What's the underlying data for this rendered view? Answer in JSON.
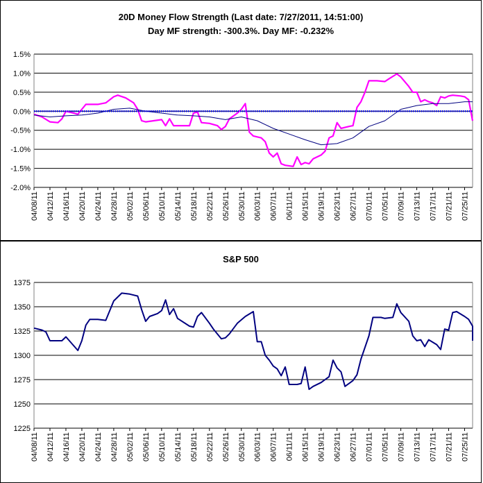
{
  "colors": {
    "mf_line": "#FF00FF",
    "avg_line": "#000080",
    "zero_line": "#0000FF",
    "sp_line": "#000080",
    "grid": "#000000",
    "background": "#FFFFFF"
  },
  "x_tick_labels": [
    "04/08/11",
    "04/12/11",
    "04/16/11",
    "04/20/11",
    "04/24/11",
    "04/28/11",
    "05/02/11",
    "05/06/11",
    "05/10/11",
    "05/14/11",
    "05/18/11",
    "05/22/11",
    "05/26/11",
    "05/30/11",
    "06/03/11",
    "06/07/11",
    "06/11/11",
    "06/15/11",
    "06/19/11",
    "06/23/11",
    "06/27/11",
    "07/01/11",
    "07/05/11",
    "07/09/11",
    "07/13/11",
    "07/17/11",
    "07/21/11",
    "07/25/11"
  ],
  "chart_data": [
    {
      "type": "line",
      "title": "20D Money Flow Strength (Last date: 7/27/2011, 14:51:00)",
      "subtitle": "Day MF strength: -300.3%. Day MF: -0.232%",
      "x_start": "04/08/11",
      "x_end": "07/27/11",
      "ylim": [
        -2.0,
        1.5
      ],
      "y_ticks": [
        "1.5%",
        "1.0%",
        "0.5%",
        "0.0%",
        "-0.5%",
        "-1.0%",
        "-1.5%",
        "-2.0%"
      ],
      "grid": true,
      "series": [
        {
          "style": "magenta",
          "points": [
            [
              "04/08/11",
              -0.08
            ],
            [
              "04/10/11",
              -0.15
            ],
            [
              "04/12/11",
              -0.28
            ],
            [
              "04/14/11",
              -0.3
            ],
            [
              "04/15/11",
              -0.2
            ],
            [
              "04/16/11",
              0.0
            ],
            [
              "04/18/11",
              -0.05
            ],
            [
              "04/19/11",
              -0.08
            ],
            [
              "04/20/11",
              0.05
            ],
            [
              "04/21/11",
              0.18
            ],
            [
              "04/24/11",
              0.18
            ],
            [
              "04/26/11",
              0.22
            ],
            [
              "04/28/11",
              0.38
            ],
            [
              "04/29/11",
              0.42
            ],
            [
              "05/01/11",
              0.35
            ],
            [
              "05/03/11",
              0.22
            ],
            [
              "05/04/11",
              0.05
            ],
            [
              "05/05/11",
              -0.25
            ],
            [
              "05/06/11",
              -0.28
            ],
            [
              "05/08/11",
              -0.25
            ],
            [
              "05/10/11",
              -0.22
            ],
            [
              "05/11/11",
              -0.38
            ],
            [
              "05/12/11",
              -0.2
            ],
            [
              "05/13/11",
              -0.38
            ],
            [
              "05/17/11",
              -0.38
            ],
            [
              "05/18/11",
              -0.05
            ],
            [
              "05/19/11",
              -0.02
            ],
            [
              "05/20/11",
              -0.3
            ],
            [
              "05/22/11",
              -0.32
            ],
            [
              "05/24/11",
              -0.38
            ],
            [
              "05/25/11",
              -0.48
            ],
            [
              "05/26/11",
              -0.4
            ],
            [
              "05/27/11",
              -0.2
            ],
            [
              "05/29/11",
              -0.05
            ],
            [
              "05/30/11",
              0.05
            ],
            [
              "05/31/11",
              0.2
            ],
            [
              "06/01/11",
              -0.55
            ],
            [
              "06/02/11",
              -0.65
            ],
            [
              "06/04/11",
              -0.7
            ],
            [
              "06/05/11",
              -0.8
            ],
            [
              "06/06/11",
              -1.1
            ],
            [
              "06/07/11",
              -1.2
            ],
            [
              "06/08/11",
              -1.1
            ],
            [
              "06/09/11",
              -1.38
            ],
            [
              "06/10/11",
              -1.42
            ],
            [
              "06/12/11",
              -1.45
            ],
            [
              "06/13/11",
              -1.2
            ],
            [
              "06/14/11",
              -1.4
            ],
            [
              "06/15/11",
              -1.35
            ],
            [
              "06/16/11",
              -1.38
            ],
            [
              "06/17/11",
              -1.25
            ],
            [
              "06/19/11",
              -1.15
            ],
            [
              "06/20/11",
              -1.05
            ],
            [
              "06/21/11",
              -0.7
            ],
            [
              "06/22/11",
              -0.65
            ],
            [
              "06/23/11",
              -0.3
            ],
            [
              "06/24/11",
              -0.45
            ],
            [
              "06/26/11",
              -0.4
            ],
            [
              "06/27/11",
              -0.38
            ],
            [
              "06/28/11",
              0.1
            ],
            [
              "06/29/11",
              0.25
            ],
            [
              "06/30/11",
              0.5
            ],
            [
              "07/01/11",
              0.8
            ],
            [
              "07/03/11",
              0.8
            ],
            [
              "07/05/11",
              0.78
            ],
            [
              "07/06/11",
              0.85
            ],
            [
              "07/08/11",
              0.98
            ],
            [
              "07/09/11",
              0.9
            ],
            [
              "07/11/11",
              0.65
            ],
            [
              "07/12/11",
              0.5
            ],
            [
              "07/13/11",
              0.5
            ],
            [
              "07/14/11",
              0.25
            ],
            [
              "07/15/11",
              0.3
            ],
            [
              "07/16/11",
              0.25
            ],
            [
              "07/17/11",
              0.22
            ],
            [
              "07/18/11",
              0.15
            ],
            [
              "07/19/11",
              0.38
            ],
            [
              "07/20/11",
              0.35
            ],
            [
              "07/21/11",
              0.4
            ],
            [
              "07/22/11",
              0.42
            ],
            [
              "07/24/11",
              0.4
            ],
            [
              "07/25/11",
              0.38
            ],
            [
              "07/26/11",
              0.3
            ],
            [
              "07/27/11",
              -0.25
            ]
          ]
        },
        {
          "style": "navy-thin",
          "points": [
            [
              "04/08/11",
              -0.1
            ],
            [
              "04/12/11",
              -0.15
            ],
            [
              "04/16/11",
              -0.12
            ],
            [
              "04/20/11",
              -0.1
            ],
            [
              "04/24/11",
              -0.05
            ],
            [
              "04/28/11",
              0.05
            ],
            [
              "05/02/11",
              0.08
            ],
            [
              "05/06/11",
              0.0
            ],
            [
              "05/10/11",
              -0.05
            ],
            [
              "05/14/11",
              -0.1
            ],
            [
              "05/18/11",
              -0.12
            ],
            [
              "05/22/11",
              -0.15
            ],
            [
              "05/26/11",
              -0.22
            ],
            [
              "05/30/11",
              -0.15
            ],
            [
              "06/03/11",
              -0.25
            ],
            [
              "06/07/11",
              -0.45
            ],
            [
              "06/11/11",
              -0.6
            ],
            [
              "06/15/11",
              -0.75
            ],
            [
              "06/19/11",
              -0.88
            ],
            [
              "06/23/11",
              -0.85
            ],
            [
              "06/27/11",
              -0.7
            ],
            [
              "07/01/11",
              -0.4
            ],
            [
              "07/05/11",
              -0.25
            ],
            [
              "07/09/11",
              0.05
            ],
            [
              "07/13/11",
              0.15
            ],
            [
              "07/17/11",
              0.2
            ],
            [
              "07/21/11",
              0.2
            ],
            [
              "07/25/11",
              0.25
            ],
            [
              "07/27/11",
              0.25
            ]
          ]
        },
        {
          "style": "zero-dotted",
          "points": [
            [
              "04/08/11",
              0.0
            ],
            [
              "07/27/11",
              0.0
            ]
          ]
        }
      ]
    },
    {
      "type": "line",
      "title": "S&P 500",
      "x_start": "04/08/11",
      "x_end": "07/27/11",
      "ylim": [
        1225,
        1375
      ],
      "y_ticks": [
        "1375",
        "1350",
        "1325",
        "1300",
        "1275",
        "1250",
        "1225"
      ],
      "grid": true,
      "series": [
        {
          "style": "navy",
          "points": [
            [
              "04/08/11",
              1328
            ],
            [
              "04/10/11",
              1326
            ],
            [
              "04/11/11",
              1324
            ],
            [
              "04/12/11",
              1315
            ],
            [
              "04/15/11",
              1315
            ],
            [
              "04/16/11",
              1319
            ],
            [
              "04/19/11",
              1305
            ],
            [
              "04/20/11",
              1315
            ],
            [
              "04/21/11",
              1331
            ],
            [
              "04/22/11",
              1337
            ],
            [
              "04/24/11",
              1337
            ],
            [
              "04/26/11",
              1336
            ],
            [
              "04/28/11",
              1356
            ],
            [
              "04/30/11",
              1364
            ],
            [
              "05/02/11",
              1363
            ],
            [
              "05/04/11",
              1361
            ],
            [
              "05/05/11",
              1347
            ],
            [
              "05/06/11",
              1335
            ],
            [
              "05/07/11",
              1340
            ],
            [
              "05/09/11",
              1343
            ],
            [
              "05/10/11",
              1346
            ],
            [
              "05/11/11",
              1357
            ],
            [
              "05/12/11",
              1342
            ],
            [
              "05/13/11",
              1348
            ],
            [
              "05/14/11",
              1338
            ],
            [
              "05/17/11",
              1330
            ],
            [
              "05/18/11",
              1329
            ],
            [
              "05/19/11",
              1340
            ],
            [
              "05/20/11",
              1344
            ],
            [
              "05/22/11",
              1333
            ],
            [
              "05/23/11",
              1327
            ],
            [
              "05/25/11",
              1317
            ],
            [
              "05/26/11",
              1318
            ],
            [
              "05/27/11",
              1322
            ],
            [
              "05/29/11",
              1333
            ],
            [
              "05/31/11",
              1340
            ],
            [
              "06/02/11",
              1345
            ],
            [
              "06/03/11",
              1314
            ],
            [
              "06/04/11",
              1314
            ],
            [
              "06/05/11",
              1300
            ],
            [
              "06/06/11",
              1295
            ],
            [
              "06/07/11",
              1289
            ],
            [
              "06/08/11",
              1286
            ],
            [
              "06/09/11",
              1279
            ],
            [
              "06/10/11",
              1288
            ],
            [
              "06/11/11",
              1270
            ],
            [
              "06/13/11",
              1270
            ],
            [
              "06/14/11",
              1271
            ],
            [
              "06/15/11",
              1288
            ],
            [
              "06/16/11",
              1265
            ],
            [
              "06/17/11",
              1268
            ],
            [
              "06/19/11",
              1272
            ],
            [
              "06/21/11",
              1278
            ],
            [
              "06/22/11",
              1295
            ],
            [
              "06/23/11",
              1287
            ],
            [
              "06/24/11",
              1283
            ],
            [
              "06/25/11",
              1268
            ],
            [
              "06/27/11",
              1274
            ],
            [
              "06/28/11",
              1280
            ],
            [
              "06/29/11",
              1296
            ],
            [
              "07/01/11",
              1320
            ],
            [
              "07/02/11",
              1339
            ],
            [
              "07/04/11",
              1339
            ],
            [
              "07/05/11",
              1338
            ],
            [
              "07/07/11",
              1339
            ],
            [
              "07/08/11",
              1353
            ],
            [
              "07/09/11",
              1344
            ],
            [
              "07/11/11",
              1335
            ],
            [
              "07/12/11",
              1320
            ],
            [
              "07/13/11",
              1315
            ],
            [
              "07/14/11",
              1316
            ],
            [
              "07/15/11",
              1309
            ],
            [
              "07/16/11",
              1316
            ],
            [
              "07/18/11",
              1311
            ],
            [
              "07/19/11",
              1306
            ],
            [
              "07/20/11",
              1327
            ],
            [
              "07/21/11",
              1326
            ],
            [
              "07/22/11",
              1344
            ],
            [
              "07/23/11",
              1345
            ],
            [
              "07/25/11",
              1340
            ],
            [
              "07/26/11",
              1337
            ],
            [
              "07/27/11",
              1330
            ],
            [
              "07/27/11",
              1315
            ]
          ]
        }
      ]
    }
  ]
}
